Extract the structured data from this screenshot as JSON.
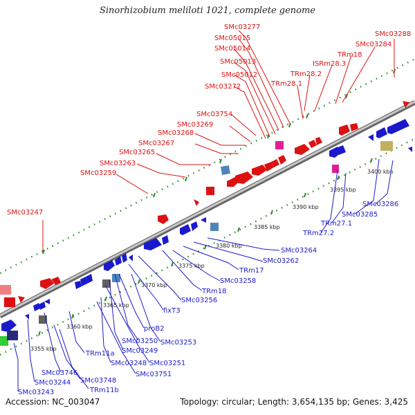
{
  "title": "Sinorhizobium meliloti 1021, complete genome",
  "footer": {
    "accession": "Accession: NC_003047",
    "summary": "Topology: circular; Length: 3,654,135 bp; Genes: 3,425"
  },
  "scale_labels": [
    "3355 kbp",
    "3360 kbp",
    "3365 kbp",
    "3370 kbp",
    "3375 kbp",
    "3380 kbp",
    "3385 kbp",
    "3390 kbp",
    "3395 kbp",
    "3400 kbp"
  ],
  "upper_labels": [
    "SMc03277",
    "SMc05015",
    "SMc05014",
    "SMc05013",
    "SMc05012",
    "SMc03272",
    "TRm28.1",
    "TRm28.2",
    "ISRm28.3",
    "TRm18",
    "SMc03284",
    "SMc03288",
    "SMc03754",
    "SMc03269",
    "SMc03268",
    "SMc03267",
    "SMc03265",
    "SMc03263",
    "SMc03259",
    "SMc03247"
  ],
  "lower_labels": [
    "SMc03264",
    "SMc03262",
    "TRm17",
    "SMc03258",
    "TRm18",
    "SMc03256",
    "fixT3",
    "proB2",
    "SMc03253",
    "SMc03250",
    "SMc03249",
    "SMc03251",
    "SMc03248",
    "SMc03751",
    "TRm11a",
    "SMc03746",
    "SMc03748",
    "TRm11b",
    "SMc03244",
    "SMc03243",
    "SMc03286",
    "SMc03285",
    "TRm27.1",
    "TRm27.2"
  ],
  "colors": {
    "upper_strand": "#dd1111",
    "lower_strand": "#1a1acc",
    "backbone": "#9a9a9a",
    "tick_dot": "#2e8b2e",
    "rna_pink": "#e0209a",
    "steelblue": "#4f86b8",
    "olive": "#c0b060",
    "gray": "#606060",
    "green": "#33cc33",
    "navy": "#2a2a7a",
    "salmon": "#f08080"
  }
}
